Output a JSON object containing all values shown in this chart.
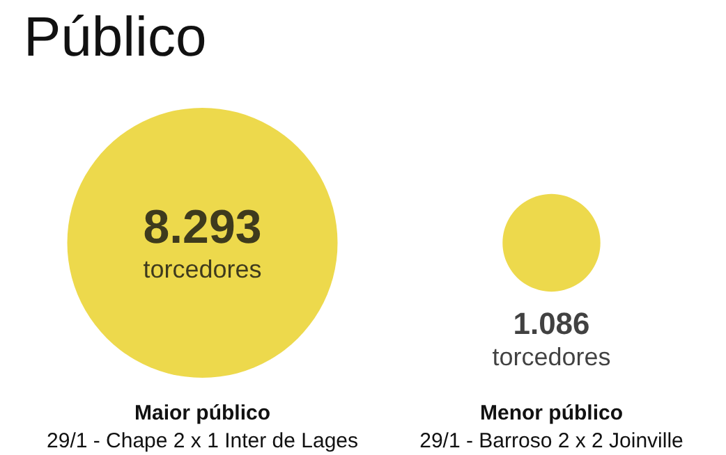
{
  "chart_data": {
    "type": "other",
    "title": "Público",
    "categories": [
      "Maior público\n29/1 - Chape 2 x 1 Inter de Lages",
      "Menor público\n29/1 - Barroso 2 x 2 Joinville"
    ],
    "values": [
      8293,
      1086
    ],
    "value_labels": [
      "8.293\ntorcedores",
      "1.086\ntorcedores"
    ],
    "color": "#e8cf1f"
  }
}
